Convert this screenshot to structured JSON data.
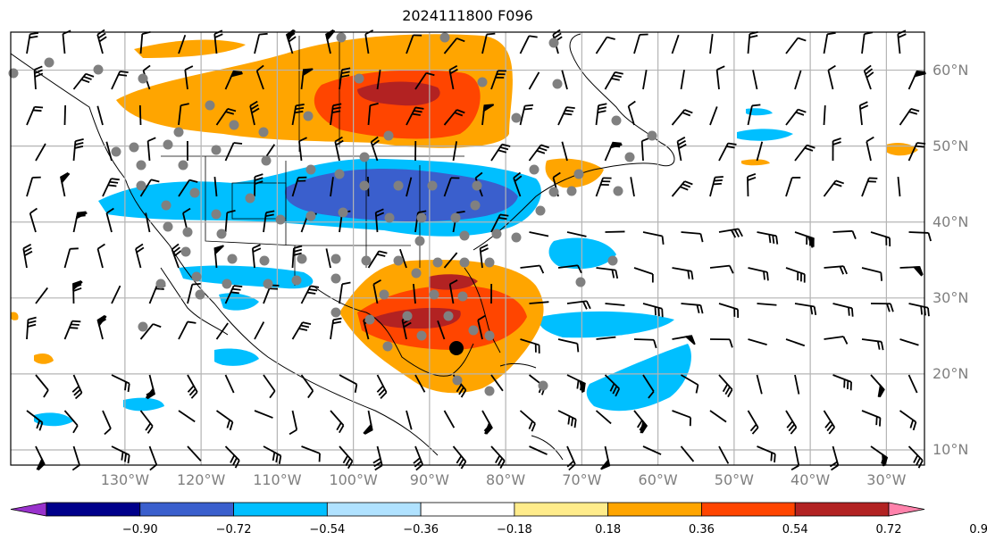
{
  "title": "2024111800 F096",
  "map": {
    "projection": "plate-carree",
    "lon_range": [
      -145,
      -25
    ],
    "lat_range": [
      8,
      65
    ],
    "grid": true,
    "lat_labels": [
      "60°N",
      "50°N",
      "40°N",
      "30°N",
      "20°N",
      "10°N"
    ],
    "lat_values": [
      60,
      50,
      40,
      30,
      20,
      10
    ],
    "lon_labels": [
      "130°W",
      "120°W",
      "110°W",
      "100°W",
      "90°W",
      "80°W",
      "70°W",
      "60°W",
      "50°W",
      "40°W",
      "30°W"
    ],
    "lon_values": [
      -130,
      -120,
      -110,
      -100,
      -90,
      -80,
      -70,
      -60,
      -50,
      -40,
      -30
    ],
    "features": [
      "coastlines",
      "country-borders",
      "us-state-borders"
    ],
    "overlays": [
      "filled-contours",
      "wind-barbs",
      "grey-station-dots",
      "black-marker"
    ]
  },
  "colorbar": {
    "extend": "both",
    "ticks": [
      "−0.90",
      "−0.72",
      "−0.54",
      "−0.36",
      "−0.18",
      "0.18",
      "0.36",
      "0.54",
      "0.72",
      "0.90"
    ],
    "colors": [
      "#9932cc",
      "#00008b",
      "#3a5fcd",
      "#00bfff",
      "#b0e2ff",
      "#ffffff",
      "#ffec8b",
      "#ffa500",
      "#ff4500",
      "#b22222",
      "#ff82ab"
    ]
  }
}
